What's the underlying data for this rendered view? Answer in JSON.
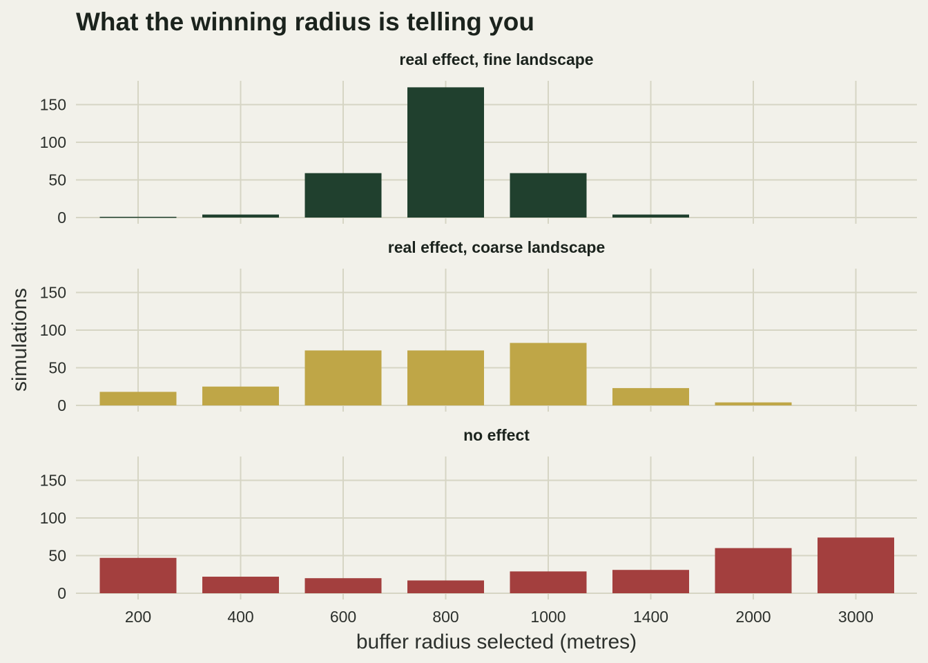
{
  "chart_data": {
    "type": "bar",
    "title": "What the winning radius is telling you",
    "xlabel": "buffer radius selected (metres)",
    "ylabel": "simulations",
    "categories": [
      "200",
      "400",
      "600",
      "800",
      "1000",
      "1400",
      "2000",
      "3000"
    ],
    "ylim": [
      0,
      180
    ],
    "yticks": [
      0,
      50,
      100,
      150
    ],
    "grid": true,
    "legend": "none",
    "panels": [
      {
        "name": "real effect, fine landscape",
        "color": "#20402e",
        "values": [
          1,
          4,
          59,
          173,
          59,
          4,
          0,
          0
        ]
      },
      {
        "name": "real effect, coarse landscape",
        "color": "#bfa647",
        "values": [
          18,
          25,
          73,
          73,
          83,
          23,
          4,
          0
        ]
      },
      {
        "name": "no effect",
        "color": "#a33f3e",
        "values": [
          47,
          22,
          20,
          17,
          29,
          31,
          60,
          74
        ]
      }
    ]
  }
}
